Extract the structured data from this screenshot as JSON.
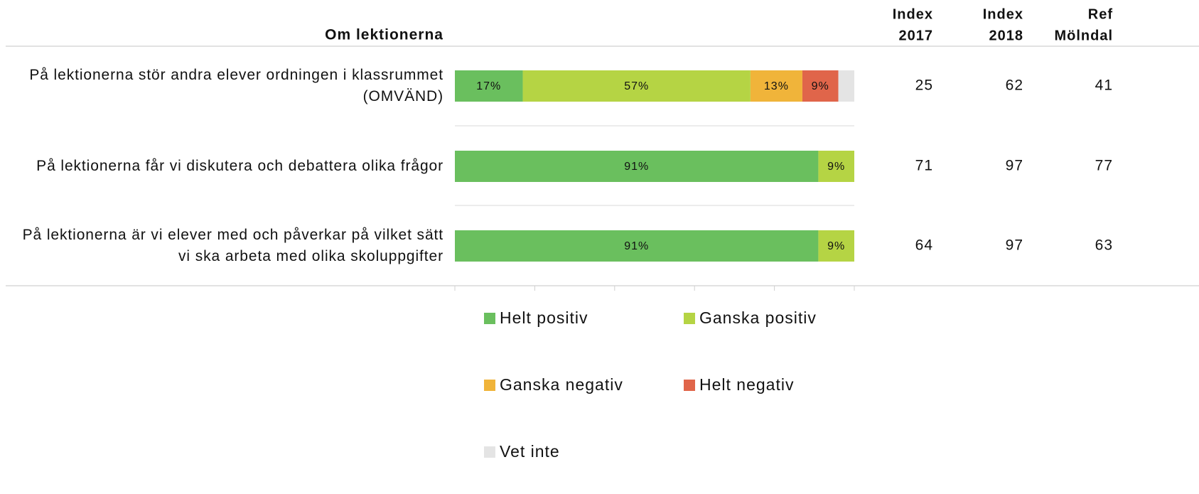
{
  "chart_data": {
    "type": "stacked-barh",
    "title": "Om lektionerna",
    "categories": [
      "På lektionerna stör andra elever ordningen i klassrummet (OMVÄND)",
      "På lektionerna får vi diskutera och debattera olika frågor",
      "På lektionerna är vi elever med och påverkar på vilket sätt vi ska arbeta med olika skoluppgifter"
    ],
    "series": [
      {
        "name": "Helt positiv",
        "color": "#6abf5e",
        "values": [
          17,
          91,
          91
        ],
        "value_labels": [
          "17%",
          "91%",
          "91%"
        ]
      },
      {
        "name": "Ganska positiv",
        "color": "#b5d444",
        "values": [
          57,
          9,
          9
        ],
        "value_labels": [
          "57%",
          "9%",
          "9%"
        ]
      },
      {
        "name": "Ganska negativ",
        "color": "#f0b43a",
        "values": [
          13,
          0,
          0
        ],
        "value_labels": [
          "13%",
          null,
          null
        ]
      },
      {
        "name": "Helt negativ",
        "color": "#e0654a",
        "values": [
          9,
          0,
          0
        ],
        "value_labels": [
          "9%",
          null,
          null
        ]
      },
      {
        "name": "Vet inte",
        "color": "#e4e4e4",
        "values": [
          4,
          0,
          0
        ],
        "value_labels": [
          null,
          null,
          null
        ]
      }
    ],
    "xlim": [
      0,
      100
    ],
    "xticks": [
      0,
      20,
      40,
      60,
      80,
      100
    ],
    "legend": "bottom"
  },
  "index_table": {
    "headers": [
      [
        "Index",
        "2017"
      ],
      [
        "Index",
        "2018"
      ],
      [
        "Ref",
        "Mölndal"
      ]
    ],
    "rows": [
      [
        25,
        62,
        41
      ],
      [
        71,
        97,
        77
      ],
      [
        64,
        97,
        63
      ]
    ]
  }
}
